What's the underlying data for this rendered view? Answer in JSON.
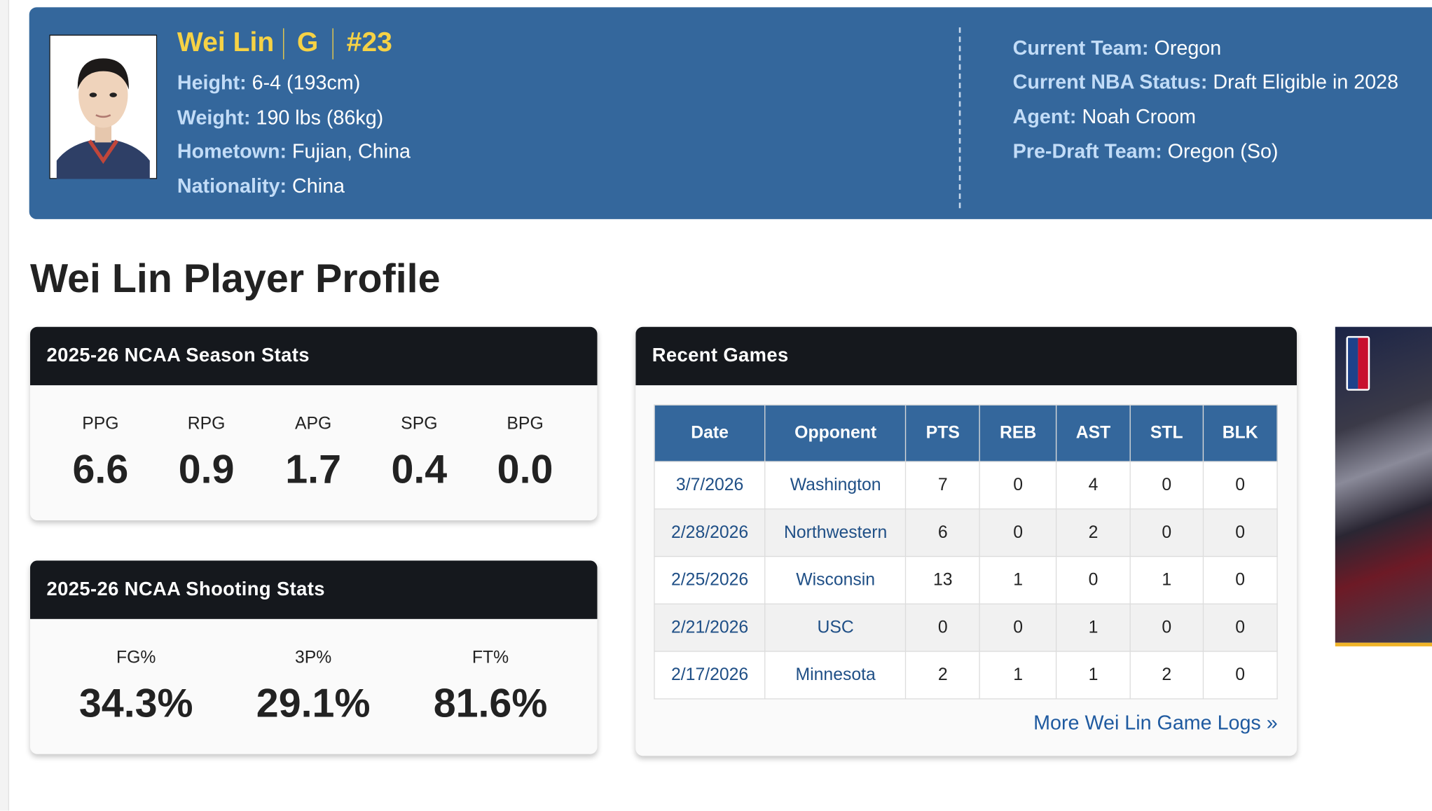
{
  "header": {
    "name": "Wei Lin",
    "position": "G",
    "number": "#23",
    "left": [
      {
        "label": "Height:",
        "value": "6-4 (193cm)"
      },
      {
        "label": "Weight:",
        "value": "190 lbs (86kg)"
      },
      {
        "label": "Hometown:",
        "value": "Fujian, China"
      },
      {
        "label": "Nationality:",
        "value": "China"
      }
    ],
    "right": [
      {
        "label": "Current Team:",
        "value": "Oregon"
      },
      {
        "label": "Current NBA Status:",
        "value": "Draft Eligible in 2028"
      },
      {
        "label": "Agent:",
        "value": "Noah Croom"
      },
      {
        "label": "Pre-Draft Team:",
        "value": "Oregon (So)"
      }
    ]
  },
  "page_title": "Wei Lin Player Profile",
  "season_stats": {
    "title": "2025-26 NCAA Season Stats",
    "items": [
      {
        "label": "PPG",
        "value": "6.6"
      },
      {
        "label": "RPG",
        "value": "0.9"
      },
      {
        "label": "APG",
        "value": "1.7"
      },
      {
        "label": "SPG",
        "value": "0.4"
      },
      {
        "label": "BPG",
        "value": "0.0"
      }
    ]
  },
  "shooting_stats": {
    "title": "2025-26 NCAA Shooting Stats",
    "items": [
      {
        "label": "FG%",
        "value": "34.3%"
      },
      {
        "label": "3P%",
        "value": "29.1%"
      },
      {
        "label": "FT%",
        "value": "81.6%"
      }
    ]
  },
  "recent_games": {
    "title": "Recent Games",
    "columns": [
      "Date",
      "Opponent",
      "PTS",
      "REB",
      "AST",
      "STL",
      "BLK"
    ],
    "rows": [
      [
        "3/7/2026",
        "Washington",
        7,
        0,
        4,
        0,
        0
      ],
      [
        "2/28/2026",
        "Northwestern",
        6,
        0,
        2,
        0,
        0
      ],
      [
        "2/25/2026",
        "Wisconsin",
        13,
        1,
        0,
        1,
        0
      ],
      [
        "2/21/2026",
        "USC",
        0,
        0,
        1,
        0,
        0
      ],
      [
        "2/17/2026",
        "Minnesota",
        2,
        1,
        1,
        2,
        0
      ]
    ],
    "link": "More Wei Lin Game Logs »"
  }
}
